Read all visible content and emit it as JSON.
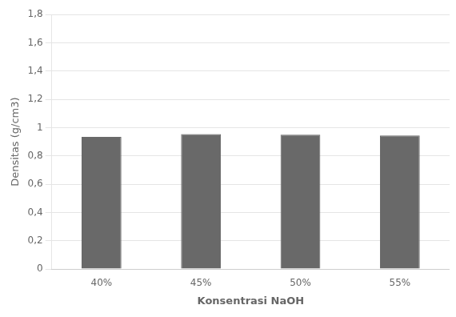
{
  "chart_data": {
    "type": "bar",
    "xlabel": "Konsentrasi NaOH",
    "ylabel": "Densitas (g/cm3)",
    "categories": [
      "40%",
      "45%",
      "50%",
      "55%"
    ],
    "values": [
      0.935,
      0.955,
      0.95,
      0.945
    ],
    "color": "#696969",
    "ylim": [
      0,
      1.8
    ],
    "yticks": [
      0,
      {
        "value": 0.2,
        "label": "0,2"
      },
      {
        "value": 0.4,
        "label": "0,4"
      },
      {
        "value": 0.6,
        "label": "0,6"
      },
      {
        "value": 0.8,
        "label": "0,8"
      },
      1,
      {
        "value": 1.2,
        "label": "1,2"
      },
      {
        "value": 1.4,
        "label": "1,4"
      },
      {
        "value": 1.6,
        "label": "1,6"
      },
      {
        "value": 1.8,
        "label": "1,8"
      }
    ],
    "grid": true
  }
}
